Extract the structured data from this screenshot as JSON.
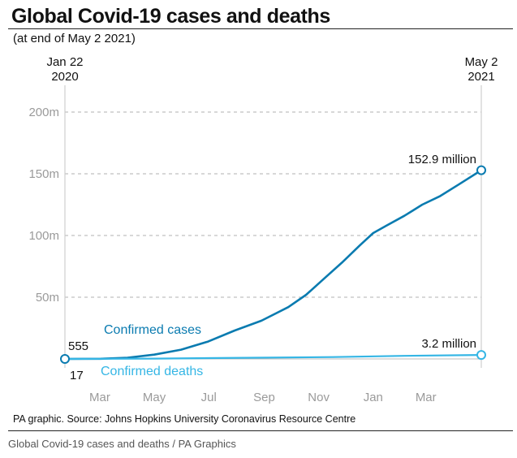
{
  "title": "Global Covid-19 cases and deaths",
  "subtitle": "(at end of May 2 2021)",
  "source": "PA graphic. Source: Johns Hopkins University Coronavirus Resource Centre",
  "caption": "Global Covid-19 cases and deaths / PA Graphics",
  "colors": {
    "cases": "#0a7bb0",
    "deaths": "#35b6e5",
    "grid": "#b0b0b0"
  },
  "chart_data": {
    "type": "line",
    "title": "Global Covid-19 cases and deaths",
    "subtitle": "(at end of May 2 2021)",
    "xlabel": "",
    "ylabel": "",
    "ylim": [
      0,
      200
    ],
    "y_unit": "millions",
    "y_ticks": [
      {
        "value": 50,
        "label": "50m"
      },
      {
        "value": 100,
        "label": "100m"
      },
      {
        "value": 150,
        "label": "150m"
      },
      {
        "value": 200,
        "label": "200m"
      }
    ],
    "x_range_days": [
      0,
      466
    ],
    "x_ticks": [
      {
        "day": 39,
        "label": "Mar"
      },
      {
        "day": 100,
        "label": "May"
      },
      {
        "day": 161,
        "label": "Jul"
      },
      {
        "day": 223,
        "label": "Sep"
      },
      {
        "day": 284,
        "label": "Nov"
      },
      {
        "day": 345,
        "label": "Jan"
      },
      {
        "day": 404,
        "label": "Mar"
      }
    ],
    "start_label": {
      "line1": "Jan 22",
      "line2": "2020"
    },
    "end_label": {
      "line1": "May 2",
      "line2": "2021"
    },
    "grid": true,
    "series": [
      {
        "name": "Confirmed cases",
        "start_value_label": "555",
        "end_value_label": "152.9 million",
        "points": [
          [
            0,
            0.0006
          ],
          [
            40,
            0.1
          ],
          [
            70,
            1.0
          ],
          [
            100,
            3.5
          ],
          [
            130,
            7.5
          ],
          [
            160,
            14
          ],
          [
            190,
            23
          ],
          [
            220,
            31
          ],
          [
            250,
            42
          ],
          [
            270,
            52
          ],
          [
            290,
            65
          ],
          [
            310,
            78
          ],
          [
            330,
            92
          ],
          [
            345,
            102
          ],
          [
            360,
            108
          ],
          [
            380,
            116
          ],
          [
            400,
            125
          ],
          [
            420,
            132
          ],
          [
            440,
            141
          ],
          [
            466,
            152.9
          ]
        ]
      },
      {
        "name": "Confirmed deaths",
        "start_value_label": "17",
        "end_value_label": "3.2 million",
        "points": [
          [
            0,
            1.7e-05
          ],
          [
            100,
            0.25
          ],
          [
            200,
            0.9
          ],
          [
            300,
            1.5
          ],
          [
            380,
            2.5
          ],
          [
            466,
            3.2
          ]
        ]
      }
    ]
  }
}
